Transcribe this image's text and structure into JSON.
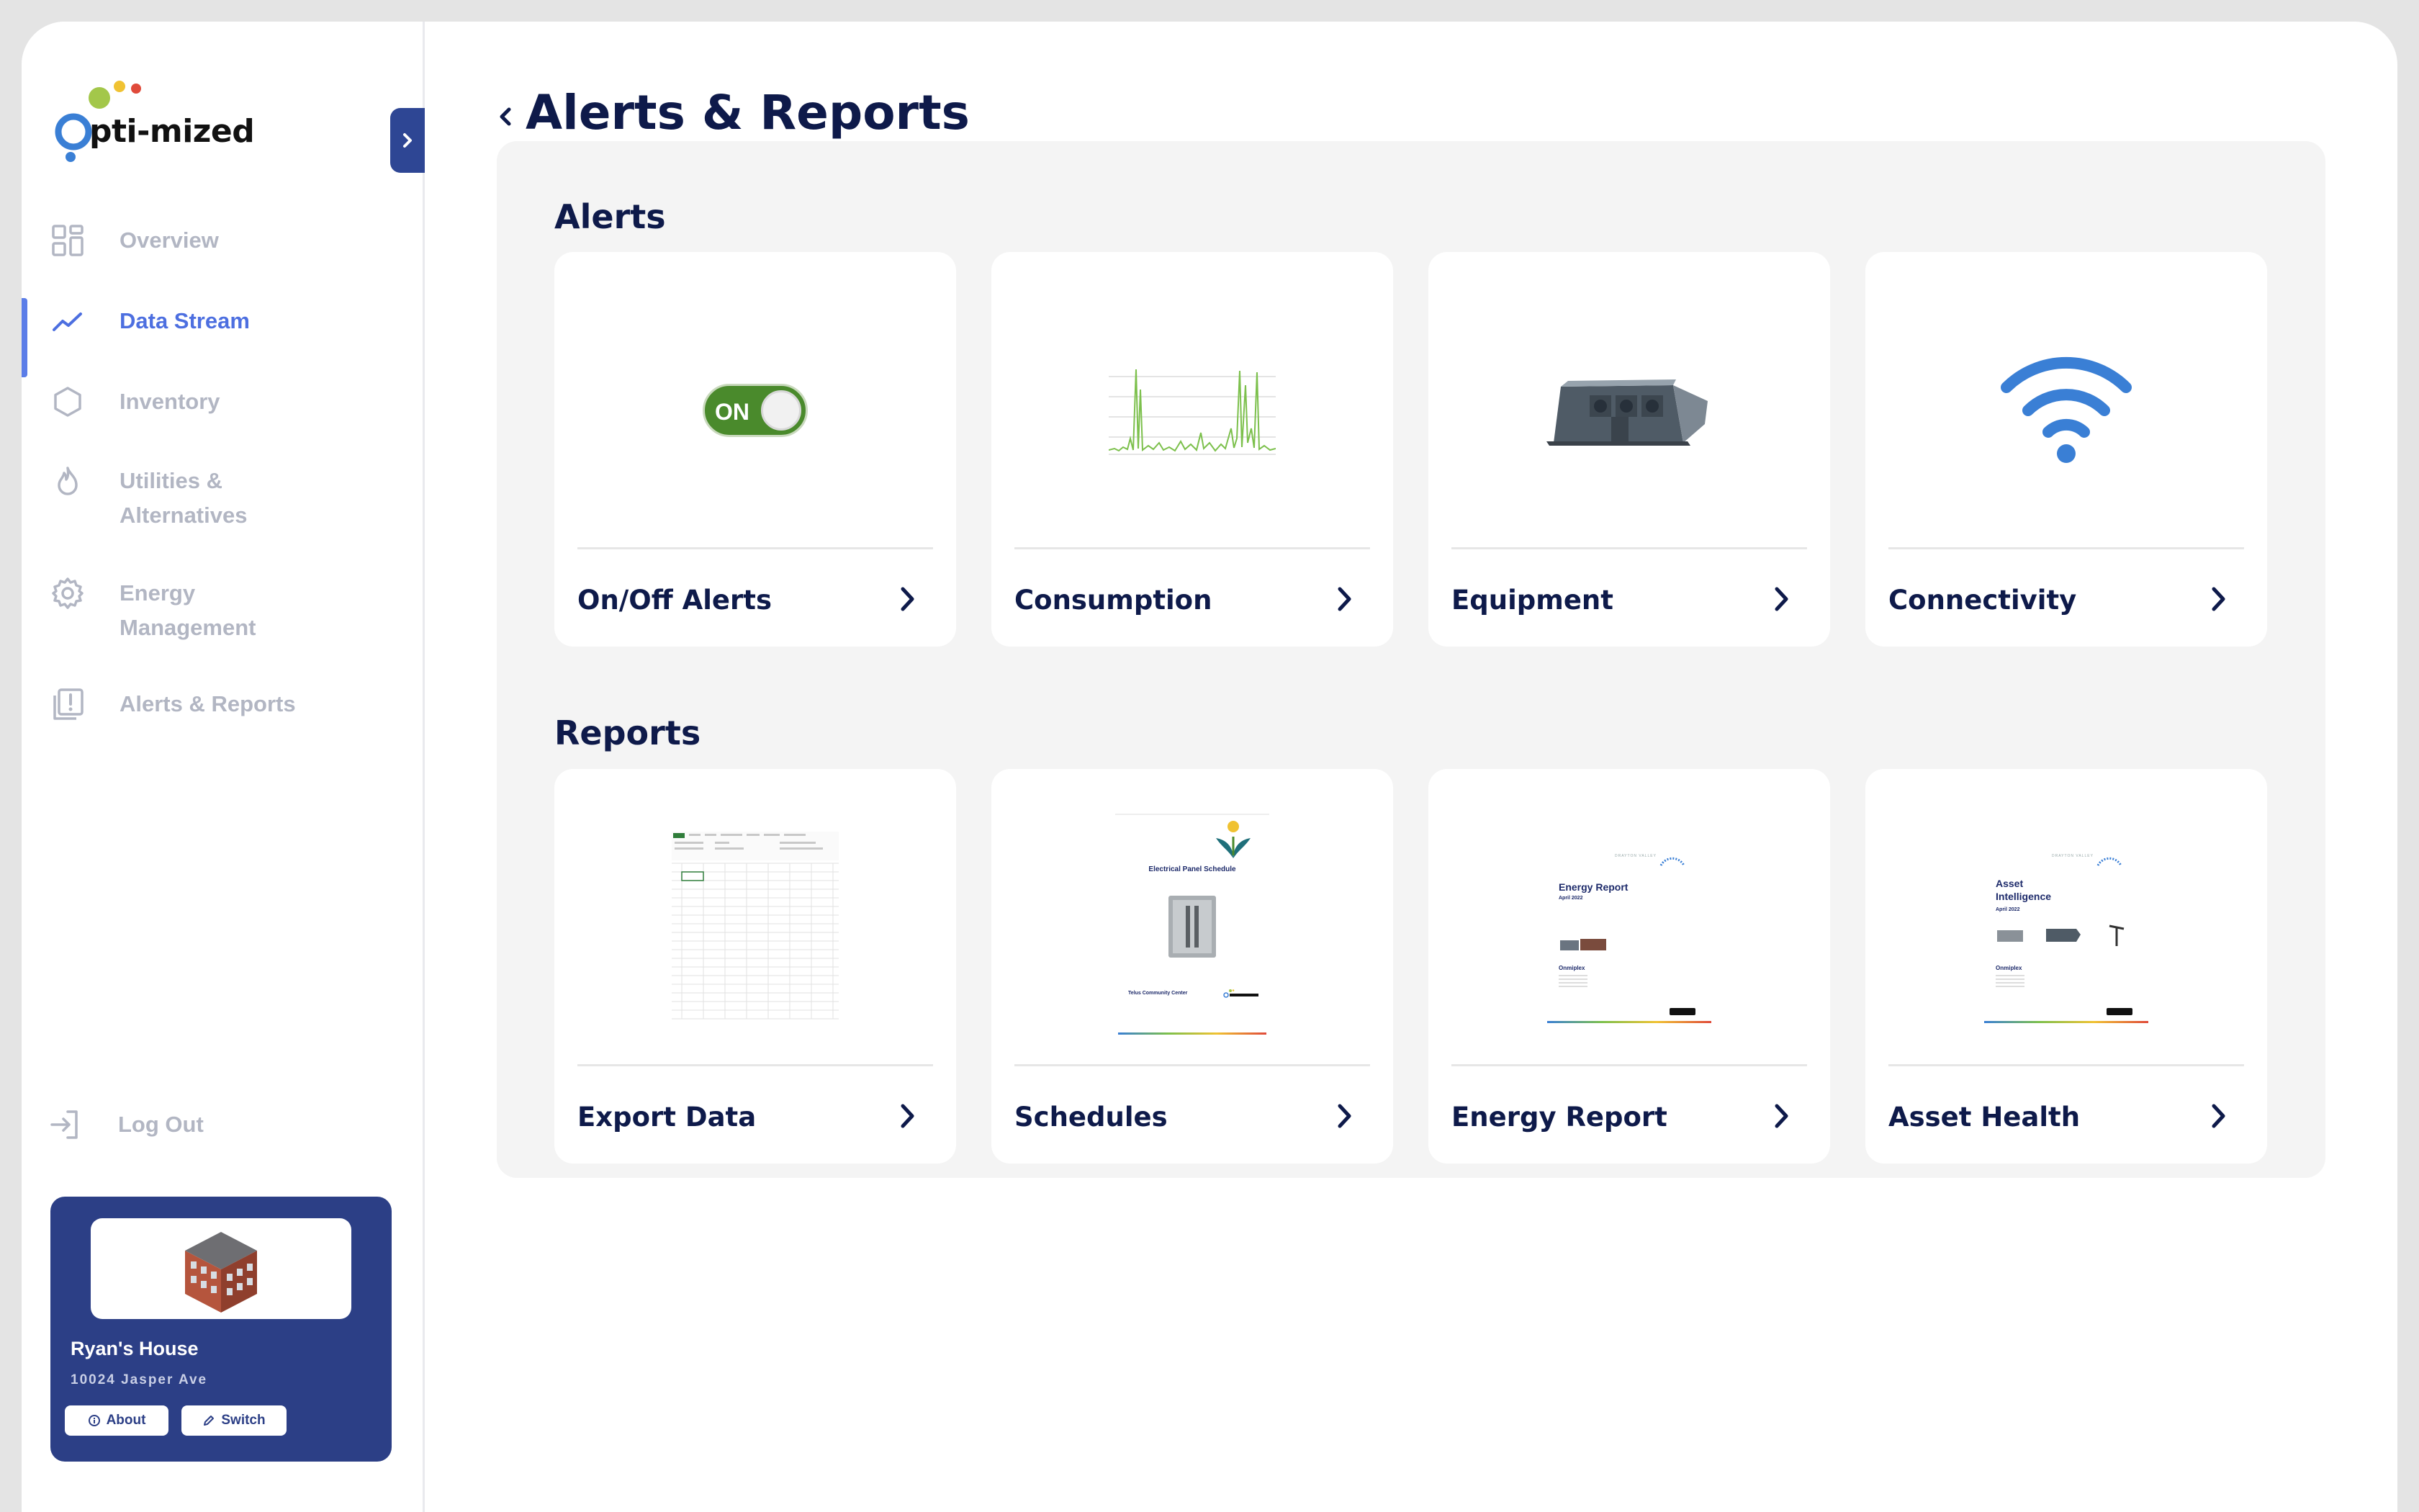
{
  "brand": {
    "name": "pti-mized",
    "initial": "O"
  },
  "nav": {
    "items": [
      {
        "label": "Overview",
        "icon": "grid-icon"
      },
      {
        "label": "Data Stream",
        "icon": "trend-line-icon",
        "active": true
      },
      {
        "label": "Inventory",
        "icon": "hexagon-icon"
      },
      {
        "label": "Utilities &\nAlternatives",
        "icon": "flame-icon"
      },
      {
        "label": "Energy\nManagement",
        "icon": "gear-icon"
      },
      {
        "label": "Alerts & Reports",
        "icon": "alert-stack-icon"
      }
    ],
    "logout": "Log Out"
  },
  "home": {
    "name": "Ryan's House",
    "address": "10024 Jasper Ave",
    "about_label": "About",
    "switch_label": "Switch"
  },
  "page": {
    "title": "Alerts & Reports"
  },
  "alerts": {
    "title": "Alerts",
    "toggle_text": "ON",
    "cards": [
      {
        "label": "On/Off Alerts"
      },
      {
        "label": "Consumption"
      },
      {
        "label": "Equipment"
      },
      {
        "label": "Connectivity"
      }
    ]
  },
  "reports": {
    "title": "Reports",
    "cards": [
      {
        "label": "Export Data"
      },
      {
        "label": "Schedules"
      },
      {
        "label": "Energy Report"
      },
      {
        "label": "Asset Health"
      }
    ],
    "schedule_doc": {
      "heading": "Electrical Panel Schedule",
      "footer": "Telus Community Center"
    },
    "energy_doc": {
      "heading": "Energy Report",
      "date": "April 2022",
      "client": "Onmiplex",
      "brand": "DRAYTON VALLEY"
    },
    "asset_doc": {
      "heading": "Asset\nIntelligence",
      "date": "April 2022",
      "client": "Onmiplex",
      "brand": "DRAYTON VALLEY"
    }
  },
  "colors": {
    "navy": "#0e1a4a",
    "accent": "#4d6fe0",
    "sidebar_card": "#2c3f86",
    "toggle_green": "#4a8a2c",
    "wifi_blue": "#3a7fd5",
    "chart_green": "#7cc04c"
  }
}
